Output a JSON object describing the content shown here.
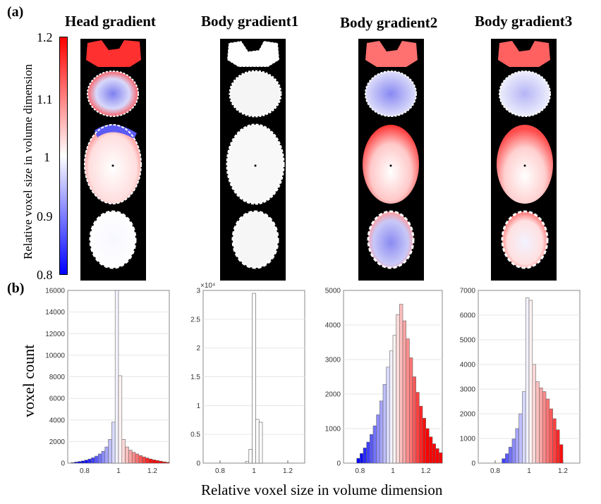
{
  "panel_a_label": "(a)",
  "panel_b_label": "(b)",
  "titles": [
    "Head gradient",
    "Body gradient1",
    "Body gradient2",
    "Body gradient3"
  ],
  "colorbar": {
    "label": "Relative voxel size in volume dimension",
    "ticks": [
      "1.2",
      "1.1",
      "1",
      "0.9",
      "0.8"
    ],
    "low_color": "#0000ff",
    "mid_color": "#ffffff",
    "high_color": "#ff0000"
  },
  "y_axis_label": "voxel count",
  "x_axis_label": "Relative voxel size in volume dimension",
  "chart_data": [
    {
      "type": "bar",
      "title": "Head gradient",
      "xlabel": "Relative voxel size in volume dimension",
      "ylabel": "voxel count",
      "xlim": [
        0.7,
        1.3
      ],
      "ylim": [
        0,
        16000
      ],
      "xticks": [
        "0.8",
        "1",
        "1.2"
      ],
      "yticks": [
        "0",
        "2000",
        "4000",
        "6000",
        "8000",
        "10000",
        "12000",
        "14000",
        "16000"
      ],
      "exponent": "",
      "x": [
        0.73,
        0.75,
        0.77,
        0.79,
        0.81,
        0.83,
        0.85,
        0.87,
        0.89,
        0.91,
        0.93,
        0.95,
        0.97,
        0.99,
        1.01,
        1.03,
        1.05,
        1.07,
        1.09,
        1.11,
        1.13,
        1.15,
        1.17,
        1.19,
        1.21,
        1.23,
        1.25,
        1.27,
        1.29
      ],
      "values": [
        50,
        100,
        150,
        200,
        280,
        380,
        500,
        650,
        850,
        1100,
        1500,
        2200,
        3800,
        16000,
        8100,
        2200,
        1500,
        1200,
        1000,
        850,
        700,
        580,
        480,
        380,
        300,
        240,
        180,
        120,
        80
      ]
    },
    {
      "type": "bar",
      "title": "Body gradient1",
      "xlabel": "Relative voxel size in volume dimension",
      "ylabel": "voxel count",
      "xlim": [
        0.7,
        1.3
      ],
      "ylim": [
        0,
        30000
      ],
      "xticks": [
        "0.8",
        "1",
        "1.2"
      ],
      "yticks": [
        "0",
        "0.5",
        "1",
        "1.5",
        "2",
        "2.5",
        "3"
      ],
      "exponent": "×10⁴",
      "x": [
        0.96,
        0.98,
        1.0,
        1.02,
        1.04
      ],
      "values": [
        300,
        2400,
        29500,
        7600,
        7100
      ]
    },
    {
      "type": "bar",
      "title": "Body gradient2",
      "xlabel": "Relative voxel size in volume dimension",
      "ylabel": "voxel count",
      "xlim": [
        0.7,
        1.3
      ],
      "ylim": [
        0,
        5000
      ],
      "xticks": [
        "0.8",
        "1",
        "1.2"
      ],
      "yticks": [
        "0",
        "1000",
        "2000",
        "3000",
        "4000",
        "5000"
      ],
      "exponent": "",
      "x": [
        0.79,
        0.81,
        0.83,
        0.85,
        0.87,
        0.89,
        0.91,
        0.93,
        0.95,
        0.97,
        0.99,
        1.01,
        1.03,
        1.05,
        1.07,
        1.09,
        1.11,
        1.13,
        1.15,
        1.17,
        1.19,
        1.21,
        1.23,
        1.25,
        1.27,
        1.29
      ],
      "values": [
        140,
        280,
        440,
        610,
        830,
        1080,
        1400,
        1800,
        2280,
        2780,
        3250,
        3700,
        4300,
        4600,
        4120,
        3600,
        3050,
        2500,
        2050,
        1650,
        1300,
        1000,
        760,
        560,
        420,
        300
      ]
    },
    {
      "type": "bar",
      "title": "Body gradient3",
      "xlabel": "Relative voxel size in volume dimension",
      "ylabel": "voxel count",
      "xlim": [
        0.7,
        1.3
      ],
      "ylim": [
        0,
        7000
      ],
      "xticks": [
        "0.8",
        "1",
        "1.2"
      ],
      "yticks": [
        "0",
        "1000",
        "2000",
        "3000",
        "4000",
        "5000",
        "6000",
        "7000"
      ],
      "exponent": "",
      "x": [
        0.85,
        0.87,
        0.89,
        0.91,
        0.93,
        0.95,
        0.97,
        0.99,
        1.01,
        1.03,
        1.05,
        1.07,
        1.09,
        1.11,
        1.13,
        1.15,
        1.17,
        1.19
      ],
      "values": [
        180,
        380,
        650,
        980,
        1400,
        2000,
        2900,
        6700,
        6600,
        4000,
        3300,
        3050,
        2900,
        2600,
        2200,
        1800,
        1350,
        750
      ]
    }
  ]
}
